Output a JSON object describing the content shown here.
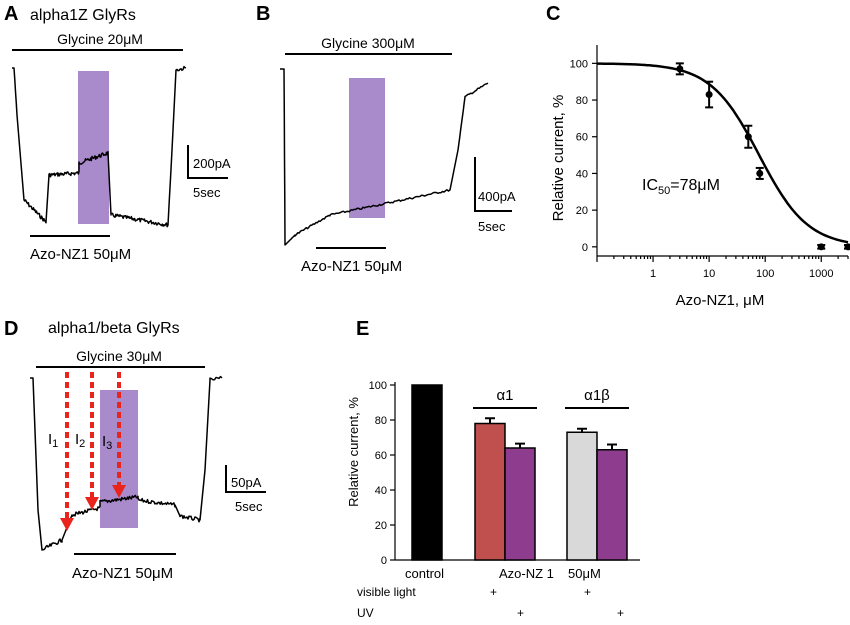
{
  "colors": {
    "purple_box": "#a98acb",
    "arrow_red": "#e8241c",
    "bar_control": "#000000",
    "bar_red": "#c0504d",
    "bar_purple": "#8e3d8e",
    "bar_gray": "#d9d9d9"
  },
  "panel_a": {
    "letter": "A",
    "title": "alpha1Z GlyRs",
    "drug_label": "Glycine 20μM",
    "block_label": "Azo-NZ1 50μM",
    "scale_current": "200pA",
    "scale_time": "5sec"
  },
  "panel_b": {
    "letter": "B",
    "drug_label": "Glycine 300μM",
    "block_label": "Azo-NZ1 50μM",
    "scale_current": "400pA",
    "scale_time": "5sec"
  },
  "panel_d": {
    "letter": "D",
    "title": "alpha1/beta GlyRs",
    "drug_label": "Glycine 30μM",
    "block_label": "Azo-NZ1 50μM",
    "scale_current": "50pA",
    "scale_time": "5sec",
    "arrow_labels": [
      "I",
      "I",
      "I"
    ],
    "arrow_subs": [
      "1",
      "2",
      "3"
    ]
  },
  "chart_data": [
    {
      "panel": "C",
      "type": "scatter",
      "xlabel": "Azo-NZ1, μM",
      "ylabel": "Relative current, %",
      "x_scale": "log",
      "xlim": [
        0.1,
        3000
      ],
      "ylim": [
        -5,
        110
      ],
      "x_ticks": [
        1,
        10,
        100,
        1000
      ],
      "x_tick_labels": [
        "1",
        "10",
        "100",
        "1000"
      ],
      "y_ticks": [
        0,
        20,
        40,
        60,
        80,
        100
      ],
      "y_tick_labels": [
        "0",
        "20",
        "40",
        "60",
        "80",
        "100"
      ],
      "annotation": {
        "main": "IC",
        "sub": "50",
        "rest": "=78μM"
      },
      "points": [
        {
          "x": 3,
          "y": 97,
          "err": 3
        },
        {
          "x": 10,
          "y": 83,
          "err": 7
        },
        {
          "x": 50,
          "y": 60,
          "err": 6
        },
        {
          "x": 80,
          "y": 40,
          "err": 3
        },
        {
          "x": 1000,
          "y": 0,
          "err": 1
        },
        {
          "x": 3000,
          "y": 0,
          "err": 1
        }
      ],
      "fit": {
        "ic50": 78,
        "hill": 1,
        "top": 100,
        "bottom": 0
      },
      "grid": false
    },
    {
      "panel": "E",
      "type": "bar",
      "ylabel": "Relative current, %",
      "ylim": [
        0,
        100
      ],
      "y_ticks": [
        0,
        20,
        40,
        60,
        80,
        100
      ],
      "y_tick_labels": [
        "0",
        "20",
        "40",
        "60",
        "80",
        "100"
      ],
      "series_groups": [
        {
          "label": "",
          "bars": [
            {
              "value": 100,
              "err": 0,
              "color": "#000000"
            }
          ]
        },
        {
          "label": "α1",
          "bars": [
            {
              "value": 78,
              "err": 3,
              "color": "#c0504d"
            },
            {
              "value": 64,
              "err": 2.5,
              "color": "#8e3d8e"
            }
          ]
        },
        {
          "label": "α1β",
          "bars": [
            {
              "value": 73,
              "err": 2,
              "color": "#d9d9d9"
            },
            {
              "value": 63,
              "err": 3,
              "color": "#8e3d8e"
            }
          ]
        }
      ],
      "x_labels": [
        "control",
        "Azo-NZ 1",
        "50μM"
      ],
      "condition_rows": [
        {
          "label": "visible light",
          "marks": [
            "+",
            "+"
          ]
        },
        {
          "label": "UV",
          "marks": [
            "+",
            "+"
          ]
        }
      ]
    }
  ]
}
